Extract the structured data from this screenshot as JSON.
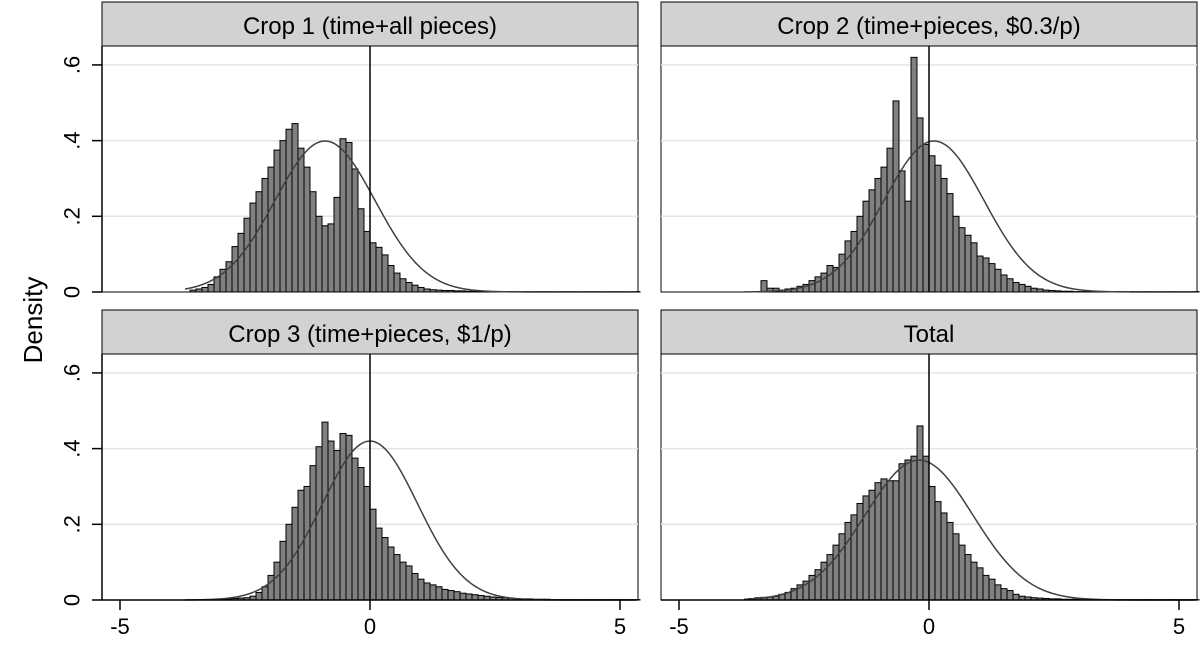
{
  "chart_data": {
    "type": "bar",
    "ylabel": "Density",
    "xlim": [
      -5,
      5
    ],
    "ylim": [
      0,
      0.65
    ],
    "x_ticks": [
      -5,
      0,
      5
    ],
    "x_tick_labels": [
      "-5",
      "0",
      "5"
    ],
    "y_ticks": [
      0,
      0.2,
      0.4,
      0.6
    ],
    "y_tick_labels": [
      "0",
      ".2",
      ".4",
      ".6"
    ],
    "grid": true,
    "bin_start": -3.6,
    "bin_width": 0.12,
    "reference_line_x": 0,
    "overlay": "normal density",
    "panels": [
      {
        "title": "Crop 1 (time+all pieces)",
        "normal_mean": -0.9,
        "normal_sd": 1.0,
        "values": [
          0.005,
          0.008,
          0.012,
          0.02,
          0.04,
          0.06,
          0.08,
          0.12,
          0.155,
          0.195,
          0.235,
          0.265,
          0.3,
          0.33,
          0.375,
          0.4,
          0.43,
          0.445,
          0.38,
          0.33,
          0.265,
          0.2,
          0.175,
          0.18,
          0.25,
          0.405,
          0.395,
          0.325,
          0.22,
          0.16,
          0.13,
          0.118,
          0.098,
          0.07,
          0.05,
          0.035,
          0.025,
          0.018,
          0.012,
          0.008,
          0.006,
          0.005,
          0.004,
          0.004,
          0.003,
          0.003,
          0.002,
          0.002,
          0.002,
          0.002,
          0.001,
          0.001,
          0.001,
          0.001,
          0.001,
          0.001,
          0.001,
          0.001,
          0.001,
          0.001,
          0.001,
          0.001,
          0.001,
          0.001,
          0.001,
          0.001,
          0.001,
          0.001,
          0.001,
          0.001,
          0.001,
          0.001,
          0.001,
          0.001,
          0.001
        ]
      },
      {
        "title": "Crop 2 (time+pieces, $0.3/p)",
        "normal_mean": 0.1,
        "normal_sd": 1.0,
        "values": [
          0.0,
          0.0,
          0.03,
          0.01,
          0.01,
          0.005,
          0.008,
          0.01,
          0.015,
          0.02,
          0.03,
          0.04,
          0.05,
          0.07,
          0.065,
          0.1,
          0.135,
          0.16,
          0.2,
          0.24,
          0.27,
          0.3,
          0.33,
          0.38,
          0.505,
          0.32,
          0.24,
          0.62,
          0.46,
          0.39,
          0.36,
          0.335,
          0.3,
          0.26,
          0.2,
          0.17,
          0.15,
          0.13,
          0.095,
          0.09,
          0.075,
          0.06,
          0.045,
          0.035,
          0.025,
          0.02,
          0.015,
          0.01,
          0.008,
          0.005,
          0.004,
          0.003,
          0.002,
          0.002,
          0.001,
          0.001,
          0.001,
          0.001,
          0.001,
          0.001,
          0.001,
          0.001,
          0.001,
          0.001,
          0.001,
          0.001,
          0.001,
          0.001,
          0.001,
          0.001,
          0.001,
          0.001,
          0.001,
          0.001,
          0.001
        ]
      },
      {
        "title": "Crop 3 (time+pieces, $1/p)",
        "normal_mean": 0.0,
        "normal_sd": 0.95,
        "values": [
          0.0,
          0.0,
          0.001,
          0.001,
          0.002,
          0.002,
          0.003,
          0.004,
          0.005,
          0.006,
          0.01,
          0.02,
          0.035,
          0.065,
          0.1,
          0.155,
          0.2,
          0.245,
          0.29,
          0.3,
          0.355,
          0.405,
          0.47,
          0.42,
          0.395,
          0.44,
          0.435,
          0.375,
          0.35,
          0.3,
          0.24,
          0.19,
          0.165,
          0.14,
          0.12,
          0.1,
          0.09,
          0.07,
          0.055,
          0.045,
          0.04,
          0.035,
          0.028,
          0.025,
          0.022,
          0.018,
          0.016,
          0.014,
          0.012,
          0.01,
          0.008,
          0.007,
          0.006,
          0.005,
          0.004,
          0.003,
          0.003,
          0.002,
          0.002,
          0.002,
          0.001,
          0.001,
          0.001,
          0.001,
          0.001,
          0.001,
          0.001,
          0.001,
          0.001,
          0.001,
          0.001,
          0.001,
          0.001,
          0.001,
          0.001
        ]
      },
      {
        "title": "Total",
        "normal_mean": -0.2,
        "normal_sd": 1.08,
        "values": [
          0.004,
          0.006,
          0.007,
          0.008,
          0.01,
          0.015,
          0.02,
          0.03,
          0.04,
          0.05,
          0.065,
          0.08,
          0.1,
          0.12,
          0.145,
          0.175,
          0.205,
          0.225,
          0.255,
          0.275,
          0.29,
          0.31,
          0.32,
          0.315,
          0.315,
          0.36,
          0.37,
          0.38,
          0.46,
          0.38,
          0.3,
          0.26,
          0.23,
          0.205,
          0.175,
          0.145,
          0.12,
          0.1,
          0.085,
          0.065,
          0.055,
          0.04,
          0.03,
          0.025,
          0.015,
          0.01,
          0.008,
          0.006,
          0.005,
          0.004,
          0.003,
          0.003,
          0.002,
          0.002,
          0.002,
          0.001,
          0.001,
          0.001,
          0.001,
          0.001,
          0.001,
          0.001,
          0.001,
          0.001,
          0.001,
          0.001,
          0.001,
          0.001,
          0.001,
          0.001,
          0.001,
          0.001,
          0.001,
          0.001,
          0.001
        ]
      }
    ]
  }
}
